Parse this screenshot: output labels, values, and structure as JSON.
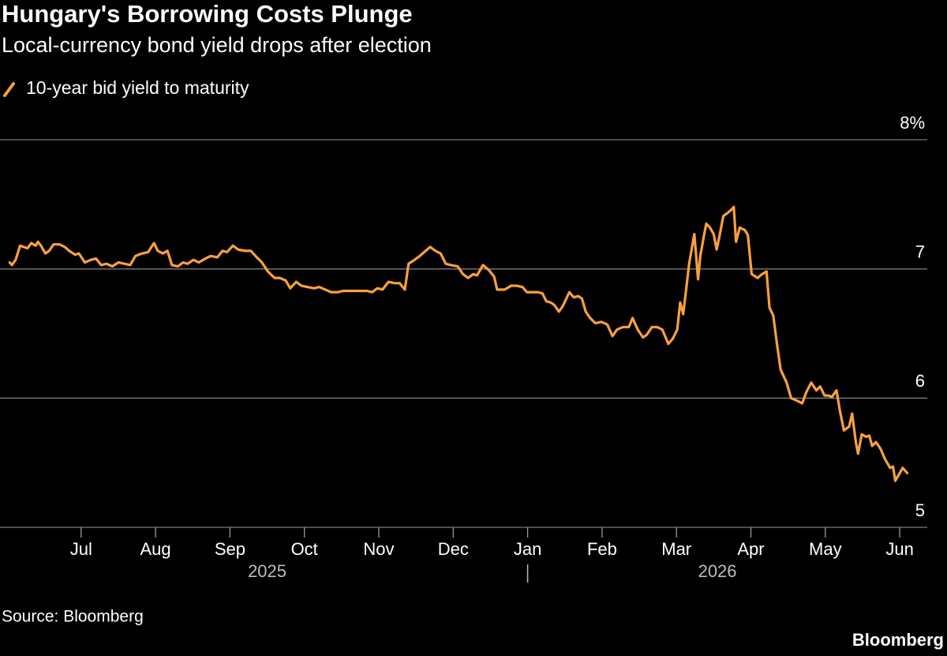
{
  "chart_data": {
    "type": "line",
    "title": "Hungary's Borrowing Costs Plunge",
    "subtitle": "Local-currency bond yield drops after election",
    "source": "Source: Bloomberg",
    "credit": "Bloomberg",
    "x": [
      6.04,
      6.07,
      6.12,
      6.18,
      6.28,
      6.33,
      6.39,
      6.42,
      6.46,
      6.52,
      6.57,
      6.63,
      6.71,
      6.78,
      6.84,
      6.92,
      6.97,
      7.05,
      7.13,
      7.2,
      7.27,
      7.34,
      7.42,
      7.5,
      7.58,
      7.66,
      7.73,
      7.82,
      7.9,
      7.98,
      8.03,
      8.1,
      8.16,
      8.22,
      8.3,
      8.37,
      8.43,
      8.51,
      8.58,
      8.67,
      8.74,
      8.83,
      8.9,
      8.96,
      9.04,
      9.11,
      9.2,
      9.28,
      9.36,
      9.43,
      9.51,
      9.6,
      9.67,
      9.75,
      9.81,
      9.89,
      9.96,
      10.04,
      10.13,
      10.2,
      10.28,
      10.36,
      10.45,
      10.52,
      10.6,
      10.68,
      10.77,
      10.84,
      10.91,
      10.98,
      11.05,
      11.13,
      11.21,
      11.28,
      11.35,
      11.4,
      11.48,
      11.55,
      11.61,
      11.69,
      11.76,
      11.83,
      11.9,
      11.97,
      12.06,
      12.13,
      12.2,
      12.27,
      12.32,
      12.4,
      12.48,
      12.55,
      12.59,
      12.69,
      12.78,
      12.85,
      12.93,
      12.99,
      13.07,
      13.14,
      13.2,
      13.25,
      13.31,
      13.36,
      13.42,
      13.47,
      13.52,
      13.56,
      13.62,
      13.68,
      13.73,
      13.78,
      13.84,
      13.91,
      13.99,
      14.07,
      14.14,
      14.2,
      14.28,
      14.36,
      14.41,
      14.48,
      14.55,
      14.6,
      14.67,
      14.74,
      14.81,
      14.89,
      14.95,
      15.01,
      15.05,
      15.09,
      15.13,
      15.17,
      15.24,
      15.29,
      15.32,
      15.37,
      15.4,
      15.45,
      15.5,
      15.54,
      15.58,
      15.63,
      15.68,
      15.74,
      15.77,
      15.8,
      15.85,
      15.92,
      15.96,
      16.01,
      16.09,
      16.15,
      16.21,
      16.25,
      16.3,
      16.35,
      16.4,
      16.48,
      16.54,
      16.62,
      16.69,
      16.74,
      16.81,
      16.88,
      16.93,
      16.99,
      17.04,
      17.09,
      17.15,
      17.2,
      17.25,
      17.32,
      17.36,
      17.41,
      17.44,
      17.49,
      17.55,
      17.59,
      17.63,
      17.68,
      17.74,
      17.8,
      17.87,
      17.91,
      17.94,
      17.99,
      18.04,
      18.1
    ],
    "series": [
      {
        "name": "10-year bid yield to maturity",
        "color": "#f9a03f",
        "values": [
          7.05,
          7.03,
          7.07,
          7.18,
          7.16,
          7.2,
          7.18,
          7.21,
          7.18,
          7.12,
          7.14,
          7.19,
          7.19,
          7.17,
          7.14,
          7.11,
          7.12,
          7.05,
          7.07,
          7.08,
          7.03,
          7.04,
          7.02,
          7.05,
          7.04,
          7.03,
          7.1,
          7.12,
          7.13,
          7.2,
          7.14,
          7.12,
          7.14,
          7.03,
          7.02,
          7.05,
          7.04,
          7.07,
          7.05,
          7.08,
          7.1,
          7.09,
          7.14,
          7.13,
          7.18,
          7.15,
          7.14,
          7.14,
          7.09,
          7.05,
          6.98,
          6.93,
          6.93,
          6.91,
          6.85,
          6.9,
          6.87,
          6.86,
          6.85,
          6.86,
          6.84,
          6.82,
          6.82,
          6.83,
          6.83,
          6.83,
          6.83,
          6.83,
          6.82,
          6.85,
          6.84,
          6.9,
          6.89,
          6.89,
          6.84,
          7.04,
          7.07,
          7.1,
          7.13,
          7.17,
          7.14,
          7.12,
          7.04,
          7.03,
          7.02,
          6.96,
          6.93,
          6.96,
          6.95,
          7.03,
          6.99,
          6.94,
          6.84,
          6.84,
          6.87,
          6.87,
          6.86,
          6.82,
          6.82,
          6.82,
          6.81,
          6.75,
          6.74,
          6.72,
          6.67,
          6.71,
          6.77,
          6.82,
          6.78,
          6.79,
          6.77,
          6.67,
          6.62,
          6.58,
          6.59,
          6.57,
          6.48,
          6.53,
          6.55,
          6.55,
          6.62,
          6.53,
          6.47,
          6.49,
          6.55,
          6.55,
          6.53,
          6.42,
          6.46,
          6.53,
          6.74,
          6.65,
          6.84,
          7.04,
          7.27,
          6.92,
          7.1,
          7.26,
          7.35,
          7.32,
          7.27,
          7.15,
          7.26,
          7.41,
          7.43,
          7.46,
          7.48,
          7.21,
          7.32,
          7.3,
          7.26,
          6.96,
          6.93,
          6.96,
          6.98,
          6.7,
          6.64,
          6.42,
          6.22,
          6.12,
          6.0,
          5.98,
          5.96,
          6.04,
          6.12,
          6.06,
          6.09,
          6.02,
          6.02,
          6.01,
          6.06,
          5.89,
          5.75,
          5.78,
          5.88,
          5.66,
          5.57,
          5.72,
          5.7,
          5.71,
          5.63,
          5.66,
          5.61,
          5.53,
          5.46,
          5.47,
          5.36,
          5.41,
          5.46,
          5.42
        ]
      }
    ],
    "xlim": [
      5.91,
      18.37
    ],
    "xticks": [
      {
        "value": 7,
        "label": "Jul"
      },
      {
        "value": 8,
        "label": "Aug"
      },
      {
        "value": 9,
        "label": "Sep"
      },
      {
        "value": 10,
        "label": "Oct"
      },
      {
        "value": 11,
        "label": "Nov"
      },
      {
        "value": 12,
        "label": "Dec"
      },
      {
        "value": 13,
        "label": "Jan"
      },
      {
        "value": 14,
        "label": "Feb"
      },
      {
        "value": 15,
        "label": "Mar"
      },
      {
        "value": 16,
        "label": "Apr"
      },
      {
        "value": 17,
        "label": "May"
      },
      {
        "value": 18,
        "label": "Jun"
      }
    ],
    "year_labels": [
      {
        "value": 9.5,
        "label": "2025"
      },
      {
        "value": 15.55,
        "label": "2026"
      }
    ],
    "year_divider": 13,
    "ylim": [
      5,
      8
    ],
    "yticks": [
      5,
      6,
      7,
      {
        "value": 8,
        "label": "8%"
      }
    ],
    "grid": true
  }
}
